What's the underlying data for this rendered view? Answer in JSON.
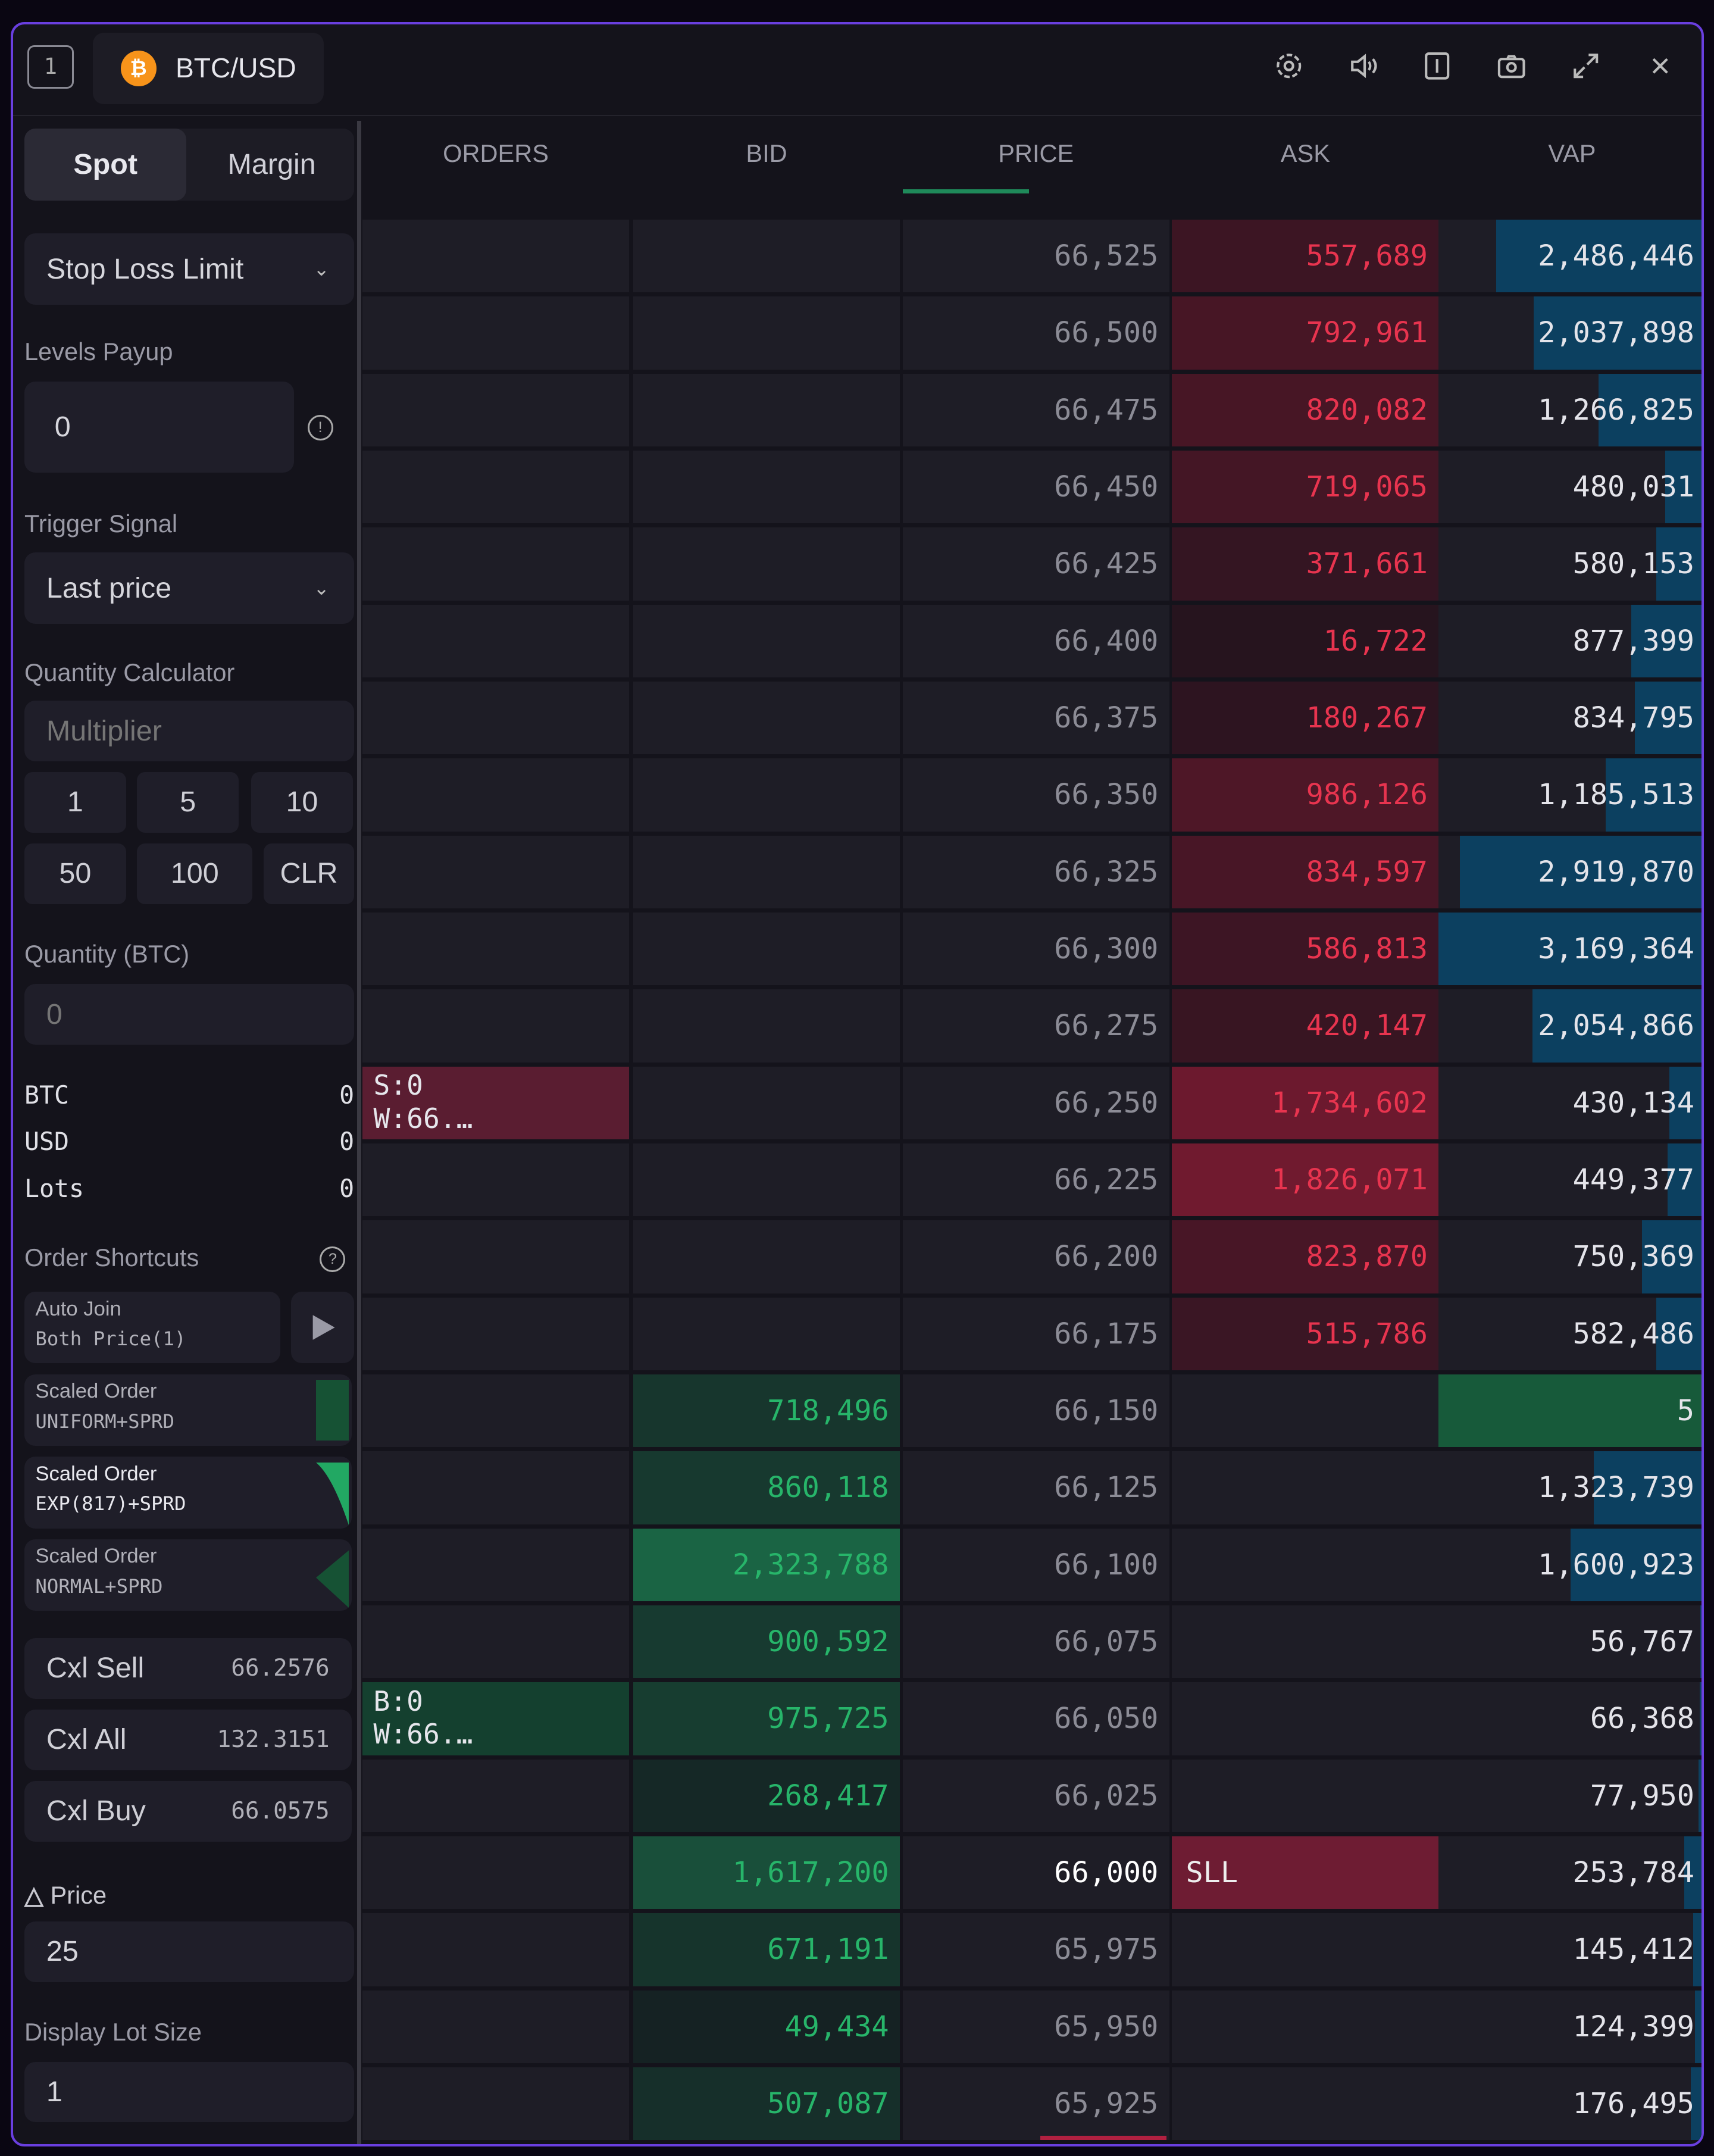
{
  "header": {
    "window_index": "1",
    "symbol": "BTC/USD",
    "coin_glyph": "₿",
    "icons": [
      "settings-icon",
      "volume-icon",
      "layout-icon",
      "camera-icon",
      "expand-icon",
      "close-icon"
    ]
  },
  "sidebar": {
    "tabs": [
      "Spot",
      "Margin"
    ],
    "active_tab": "Spot",
    "order_type": "Stop Loss Limit",
    "levels_payup_label": "Levels Payup",
    "levels_payup_value": "0",
    "trigger_signal_label": "Trigger Signal",
    "trigger_signal_value": "Last price",
    "quantity_calculator_label": "Quantity Calculator",
    "multiplier_placeholder": "Multiplier",
    "quick_buttons": [
      "1",
      "5",
      "10",
      "50",
      "100",
      "CLR"
    ],
    "quantity_label": "Quantity (BTC)",
    "quantity_placeholder": "0",
    "balances": [
      {
        "label": "BTC",
        "value": "0"
      },
      {
        "label": "USD",
        "value": "0"
      },
      {
        "label": "Lots",
        "value": "0"
      }
    ],
    "order_shortcuts_label": "Order Shortcuts",
    "shortcuts": [
      {
        "line1": "Auto Join",
        "line2": "Both Price(1)"
      },
      {
        "line1": "Scaled Order",
        "line2": "UNIFORM+SPRD"
      },
      {
        "line1": "Scaled Order",
        "line2": "EXP(817)+SPRD"
      },
      {
        "line1": "Scaled Order",
        "line2": "NORMAL+SPRD"
      }
    ],
    "cancel_buttons": [
      {
        "label": "Cxl Sell",
        "value": "66.2576"
      },
      {
        "label": "Cxl All",
        "value": "132.3151"
      },
      {
        "label": "Cxl Buy",
        "value": "66.0575"
      }
    ],
    "delta_price_label": "Price",
    "delta_price_value": "25",
    "display_lot_size_label": "Display Lot Size",
    "display_lot_size_value": "1"
  },
  "ladder": {
    "columns": [
      "ORDERS",
      "BID",
      "PRICE",
      "ASK",
      "VAP"
    ],
    "colors": {
      "ask_text": "#e8344f",
      "bid_text": "#27b56a",
      "vap_bar": "#0c4060",
      "accent": "#6a3fe0"
    },
    "rows": [
      {
        "price": "66,525",
        "ask": "557,689",
        "vap": "2,486,446"
      },
      {
        "price": "66,500",
        "ask": "792,961",
        "vap": "2,037,898"
      },
      {
        "price": "66,475",
        "ask": "820,082",
        "vap": "1,266,825"
      },
      {
        "price": "66,450",
        "ask": "719,065",
        "vap": "480,031"
      },
      {
        "price": "66,425",
        "ask": "371,661",
        "vap": "580,153"
      },
      {
        "price": "66,400",
        "ask": "16,722",
        "vap": "877,399"
      },
      {
        "price": "66,375",
        "ask": "180,267",
        "vap": "834,795"
      },
      {
        "price": "66,350",
        "ask": "986,126",
        "vap": "1,185,513"
      },
      {
        "price": "66,325",
        "ask": "834,597",
        "vap": "2,919,870"
      },
      {
        "price": "66,300",
        "ask": "586,813",
        "vap": "3,169,364"
      },
      {
        "price": "66,275",
        "ask": "420,147",
        "vap": "2,054,866"
      },
      {
        "price": "66,250",
        "ask": "1,734,602",
        "vap": "430,134",
        "order": [
          "S:0",
          "W:66.…"
        ],
        "order_side": "sell"
      },
      {
        "price": "66,225",
        "ask": "1,826,071",
        "vap": "449,377"
      },
      {
        "price": "66,200",
        "ask": "823,870",
        "vap": "750,369"
      },
      {
        "price": "66,175",
        "ask": "515,786",
        "vap": "582,486"
      },
      {
        "price": "66,150",
        "bid": "718,496",
        "vap": "5",
        "last_traded": true
      },
      {
        "price": "66,125",
        "bid": "860,118",
        "vap": "1,323,739"
      },
      {
        "price": "66,100",
        "bid": "2,323,788",
        "vap": "1,600,923"
      },
      {
        "price": "66,075",
        "bid": "900,592",
        "vap": "56,767"
      },
      {
        "price": "66,050",
        "bid": "975,725",
        "vap": "66,368",
        "order": [
          "B:0",
          "W:66.…"
        ],
        "order_side": "buy"
      },
      {
        "price": "66,025",
        "bid": "268,417",
        "vap": "77,950"
      },
      {
        "price": "66,000",
        "bid": "1,617,200",
        "vap": "253,784",
        "ask_label": "SLL",
        "highlight": true
      },
      {
        "price": "65,975",
        "bid": "671,191",
        "vap": "145,412"
      },
      {
        "price": "65,950",
        "bid": "49,434",
        "vap": "124,399"
      },
      {
        "price": "65,925",
        "bid": "507,087",
        "vap": "176,495"
      }
    ]
  }
}
